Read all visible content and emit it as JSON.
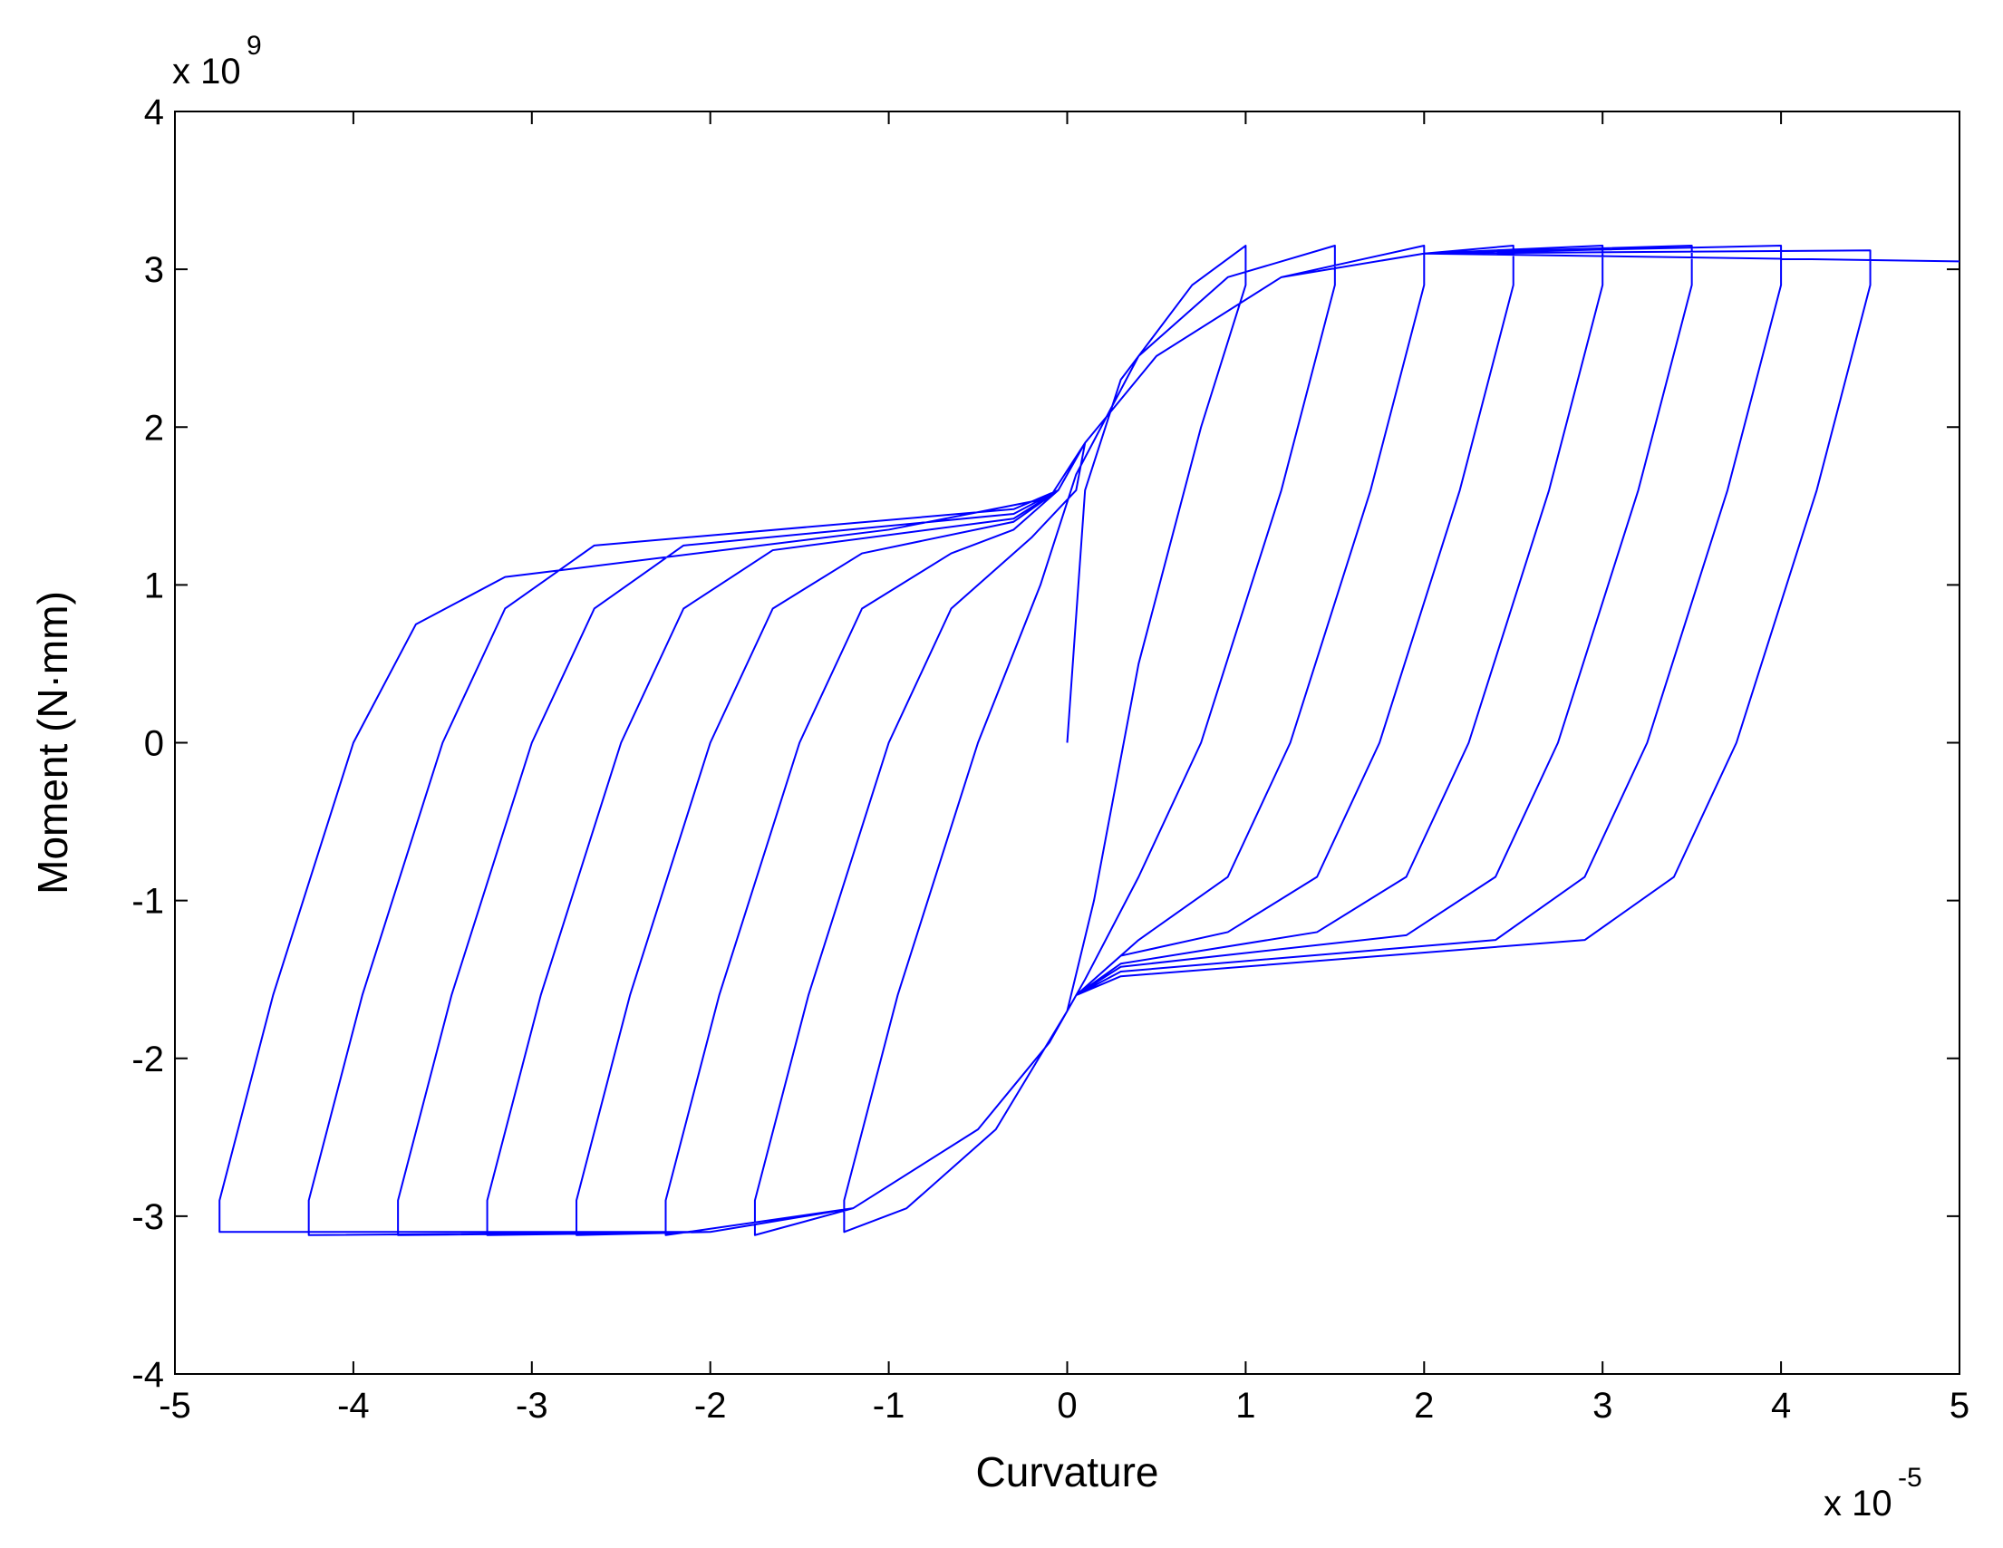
{
  "chart_data": {
    "type": "line",
    "x_label": "Curvature",
    "y_label": "Moment (N·mm)",
    "x_exponent": {
      "base": "x 10",
      "power": "-5"
    },
    "y_exponent": {
      "base": "x 10",
      "power": "9"
    },
    "color": "#0000ff",
    "xlim": [
      -5,
      5
    ],
    "ylim": [
      -4,
      4
    ],
    "xticks": [
      -5,
      -4,
      -3,
      -2,
      -1,
      0,
      1,
      2,
      3,
      4,
      5
    ],
    "yticks": [
      -4,
      -3,
      -2,
      -1,
      0,
      1,
      2,
      3,
      4
    ],
    "x": [
      0,
      0.1,
      0.3,
      0.7,
      1,
      1,
      0.75,
      0.4,
      0.15,
      0,
      -0.4,
      -0.9,
      -1.25,
      -1.25,
      -0.95,
      -0.5,
      -0.15,
      0.05,
      0.4,
      0.9,
      1.5,
      1.5,
      1.2,
      0.75,
      0.4,
      0.1,
      -0.1,
      -0.5,
      -1.2,
      -1.75,
      -1.75,
      -1.45,
      -1,
      -0.65,
      -0.2,
      0.05,
      0.1,
      0.5,
      1.2,
      2,
      2,
      1.7,
      1.25,
      0.9,
      0.4,
      0.05,
      -0.1,
      -0.5,
      -1.2,
      -2.25,
      -2.25,
      -1.95,
      -1.5,
      -1.15,
      -0.65,
      -0.3,
      -0.05,
      0.1,
      0.5,
      1.2,
      2,
      2.5,
      2.5,
      2.2,
      1.75,
      1.4,
      0.9,
      0.3,
      0.05,
      -0.1,
      -0.5,
      -1.2,
      -2,
      -2.75,
      -2.75,
      -2.45,
      -2,
      -1.65,
      -1.15,
      -0.3,
      -0.05,
      0.1,
      0.5,
      1.2,
      2,
      3,
      3,
      2.7,
      2.25,
      1.9,
      1.4,
      0.3,
      0.05,
      -0.1,
      -0.5,
      -1.2,
      -2,
      -3.25,
      -3.25,
      -2.95,
      -2.5,
      -2.15,
      -1.65,
      -0.3,
      -0.05,
      0.1,
      0.5,
      1.2,
      2,
      3.5,
      3.5,
      3.2,
      2.75,
      2.4,
      1.9,
      0.3,
      0.05,
      -0.1,
      -0.5,
      -1.2,
      -2,
      -3.75,
      -3.75,
      -3.45,
      -3,
      -2.65,
      -2.15,
      -0.3,
      -0.05,
      0.1,
      0.5,
      1.2,
      2,
      4,
      4,
      3.7,
      3.25,
      2.9,
      2.4,
      0.3,
      0.05,
      -0.1,
      -0.5,
      -1.2,
      -2,
      -4.25,
      -4.25,
      -3.95,
      -3.5,
      -3.15,
      -2.65,
      -0.3,
      -0.05,
      0.1,
      0.5,
      1.2,
      2,
      4.5,
      4.5,
      4.2,
      3.75,
      3.4,
      2.9,
      0.3,
      0.05,
      -0.1,
      -0.5,
      -1.2,
      -2,
      -4.75,
      -4.75,
      -4.45,
      -4,
      -3.65,
      -3.15,
      -1,
      -0.1,
      0.1,
      0.5,
      1.2,
      2,
      5
    ],
    "values": [
      0,
      1.6,
      2.3,
      2.9,
      3.15,
      2.9,
      2.0,
      0.5,
      -1.0,
      -1.7,
      -2.45,
      -2.95,
      -3.1,
      -2.9,
      -1.6,
      0,
      1.0,
      1.7,
      2.45,
      2.95,
      3.15,
      2.9,
      1.6,
      0,
      -0.85,
      -1.5,
      -1.9,
      -2.45,
      -2.95,
      -3.12,
      -2.9,
      -1.6,
      0,
      0.85,
      1.3,
      1.6,
      1.9,
      2.45,
      2.95,
      3.15,
      2.9,
      1.6,
      0,
      -0.85,
      -1.25,
      -1.6,
      -1.9,
      -2.45,
      -2.95,
      -3.12,
      -2.9,
      -1.6,
      0,
      0.85,
      1.2,
      1.35,
      1.6,
      1.9,
      2.45,
      2.95,
      3.1,
      3.15,
      2.9,
      1.6,
      0,
      -0.85,
      -1.2,
      -1.35,
      -1.6,
      -1.9,
      -2.45,
      -2.95,
      -3.1,
      -3.12,
      -2.9,
      -1.6,
      0,
      0.85,
      1.2,
      1.4,
      1.6,
      1.9,
      2.45,
      2.95,
      3.1,
      3.15,
      2.9,
      1.6,
      0,
      -0.85,
      -1.2,
      -1.4,
      -1.6,
      -1.9,
      -2.45,
      -2.95,
      -3.1,
      -3.12,
      -2.9,
      -1.6,
      0,
      0.85,
      1.22,
      1.42,
      1.6,
      1.9,
      2.45,
      2.95,
      3.1,
      3.15,
      2.9,
      1.6,
      0,
      -0.85,
      -1.22,
      -1.42,
      -1.6,
      -1.9,
      -2.45,
      -2.95,
      -3.1,
      -3.12,
      -2.9,
      -1.6,
      0,
      0.85,
      1.25,
      1.45,
      1.6,
      1.9,
      2.45,
      2.95,
      3.1,
      3.15,
      2.9,
      1.6,
      0,
      -0.85,
      -1.25,
      -1.45,
      -1.6,
      -1.9,
      -2.45,
      -2.95,
      -3.1,
      -3.12,
      -2.9,
      -1.6,
      0,
      0.85,
      1.25,
      1.48,
      1.6,
      1.9,
      2.45,
      2.95,
      3.1,
      3.12,
      2.9,
      1.6,
      0,
      -0.85,
      -1.25,
      -1.48,
      -1.6,
      -1.9,
      -2.45,
      -2.95,
      -3.1,
      -3.1,
      -2.9,
      -1.6,
      0,
      0.75,
      1.05,
      1.35,
      1.55,
      1.9,
      2.45,
      2.95,
      3.1,
      3.05
    ]
  }
}
